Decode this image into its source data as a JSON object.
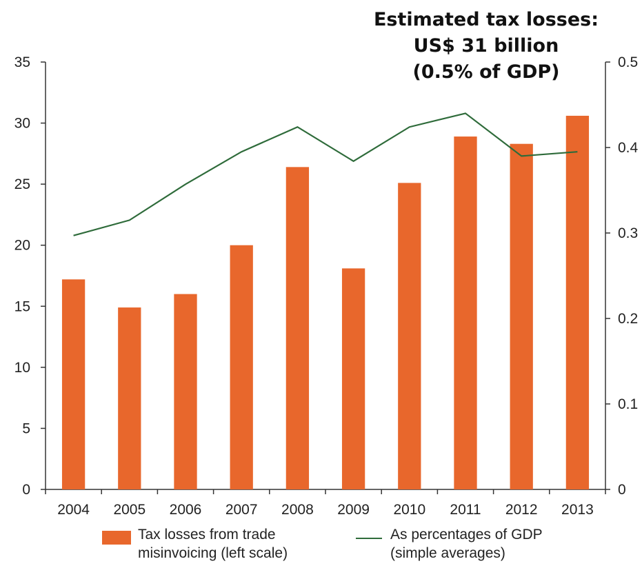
{
  "annotation": {
    "lines": [
      "Estimated tax losses:",
      "US$ 31 billion",
      "(0.5% of GDP)"
    ]
  },
  "legend": {
    "bars_lines": [
      "Tax losses from trade",
      "misinvoicing (left scale)"
    ],
    "line_lines": [
      "As percentages of GDP",
      "(simple averages)"
    ]
  },
  "colors": {
    "bar": "#e8672c",
    "line": "#2e6b3a",
    "axis": "#333333"
  },
  "chart_data": {
    "type": "bar",
    "categories": [
      "2004",
      "2005",
      "2006",
      "2007",
      "2008",
      "2009",
      "2010",
      "2011",
      "2012",
      "2013"
    ],
    "series": [
      {
        "name": "Tax losses from trade misinvoicing (left scale)",
        "type": "bar",
        "axis": "left",
        "values": [
          17.2,
          14.9,
          16.0,
          20.0,
          26.4,
          18.1,
          25.1,
          28.9,
          28.3,
          30.6
        ]
      },
      {
        "name": "As percentages of GDP (simple averages)",
        "type": "line",
        "axis": "right",
        "values": [
          0.297,
          0.315,
          0.357,
          0.395,
          0.424,
          0.384,
          0.424,
          0.44,
          0.39,
          0.395
        ]
      }
    ],
    "yleft": {
      "ylim": [
        0,
        35
      ],
      "ticks": [
        "0",
        "5",
        "10",
        "15",
        "20",
        "25",
        "30",
        "35"
      ]
    },
    "yright": {
      "ylim": [
        0,
        0.5
      ],
      "ticks": [
        "0",
        "0.1",
        "0.2",
        "0.3",
        "0.4",
        "0.5"
      ]
    },
    "grid": false,
    "legend_position": "bottom"
  }
}
